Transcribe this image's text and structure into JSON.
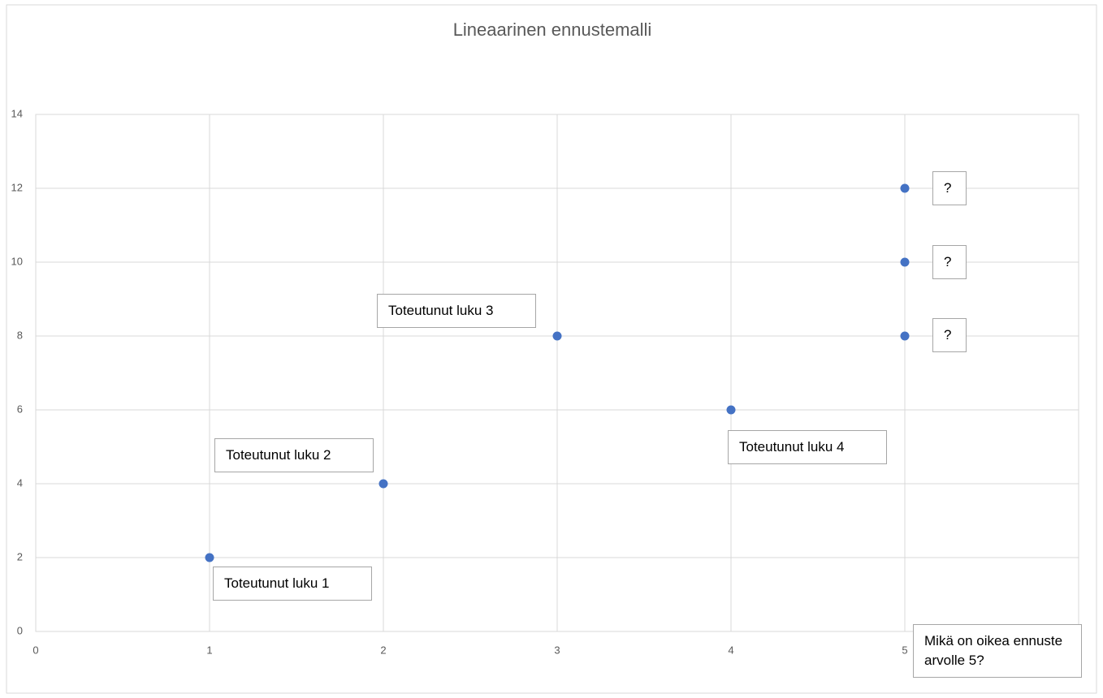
{
  "chart_data": {
    "type": "scatter",
    "title": "Lineaarinen ennustemalli",
    "x": [
      1,
      2,
      3,
      4,
      5,
      5,
      5
    ],
    "values": [
      2,
      4,
      8,
      6,
      8,
      10,
      12
    ],
    "color": "#4472c4",
    "xlim": [
      0,
      6
    ],
    "xticks": [
      0,
      1,
      2,
      3,
      4,
      5
    ],
    "ylim": [
      0,
      14
    ],
    "yticks": [
      0,
      2,
      4,
      6,
      8,
      10,
      12,
      14
    ],
    "grid": true,
    "annotations": [
      "Toteutunut luku 1",
      "Toteutunut luku 2",
      "Toteutunut luku 3",
      "Toteutunut luku 4",
      "?",
      "?",
      "?",
      "Mikä on oikea ennuste arvolle 5?"
    ]
  }
}
